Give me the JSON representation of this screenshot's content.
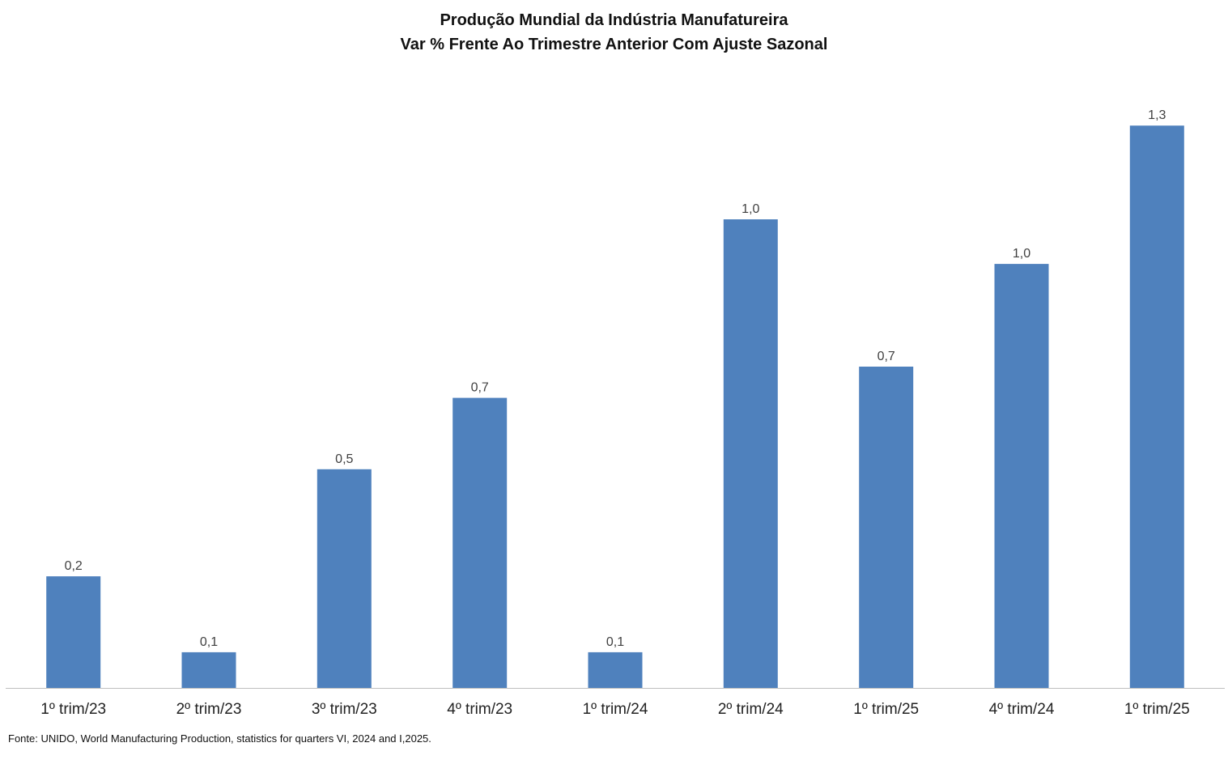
{
  "chart_data": {
    "type": "bar",
    "title": "Produção Mundial da Indústria Manufatureira",
    "subtitle": "Var % Frente Ao Trimestre Anterior Com Ajuste Sazonal",
    "categories": [
      "1º trim/23",
      "2º trim/23",
      "3º trim/23",
      "4º trim/23",
      "1º trim/24",
      "2º trim/24",
      "1º trim/25",
      "4º trim/24",
      "1º trim/25"
    ],
    "values": [
      0.25,
      0.08,
      0.49,
      0.65,
      0.08,
      1.05,
      0.72,
      0.95,
      1.26
    ],
    "data_labels": [
      "0,2",
      "0,1",
      "0,5",
      "0,7",
      "0,1",
      "1,0",
      "0,7",
      "1,0",
      "1,3"
    ],
    "ylim": [
      0,
      1.4
    ],
    "grid": false,
    "legend": "none",
    "bar_color": "#4F81BD",
    "axis_color": "#BFBFBF"
  },
  "source_note": "Fonte: UNIDO, World Manufacturing Production,  statistics for quarters VI, 2024 and I,2025."
}
